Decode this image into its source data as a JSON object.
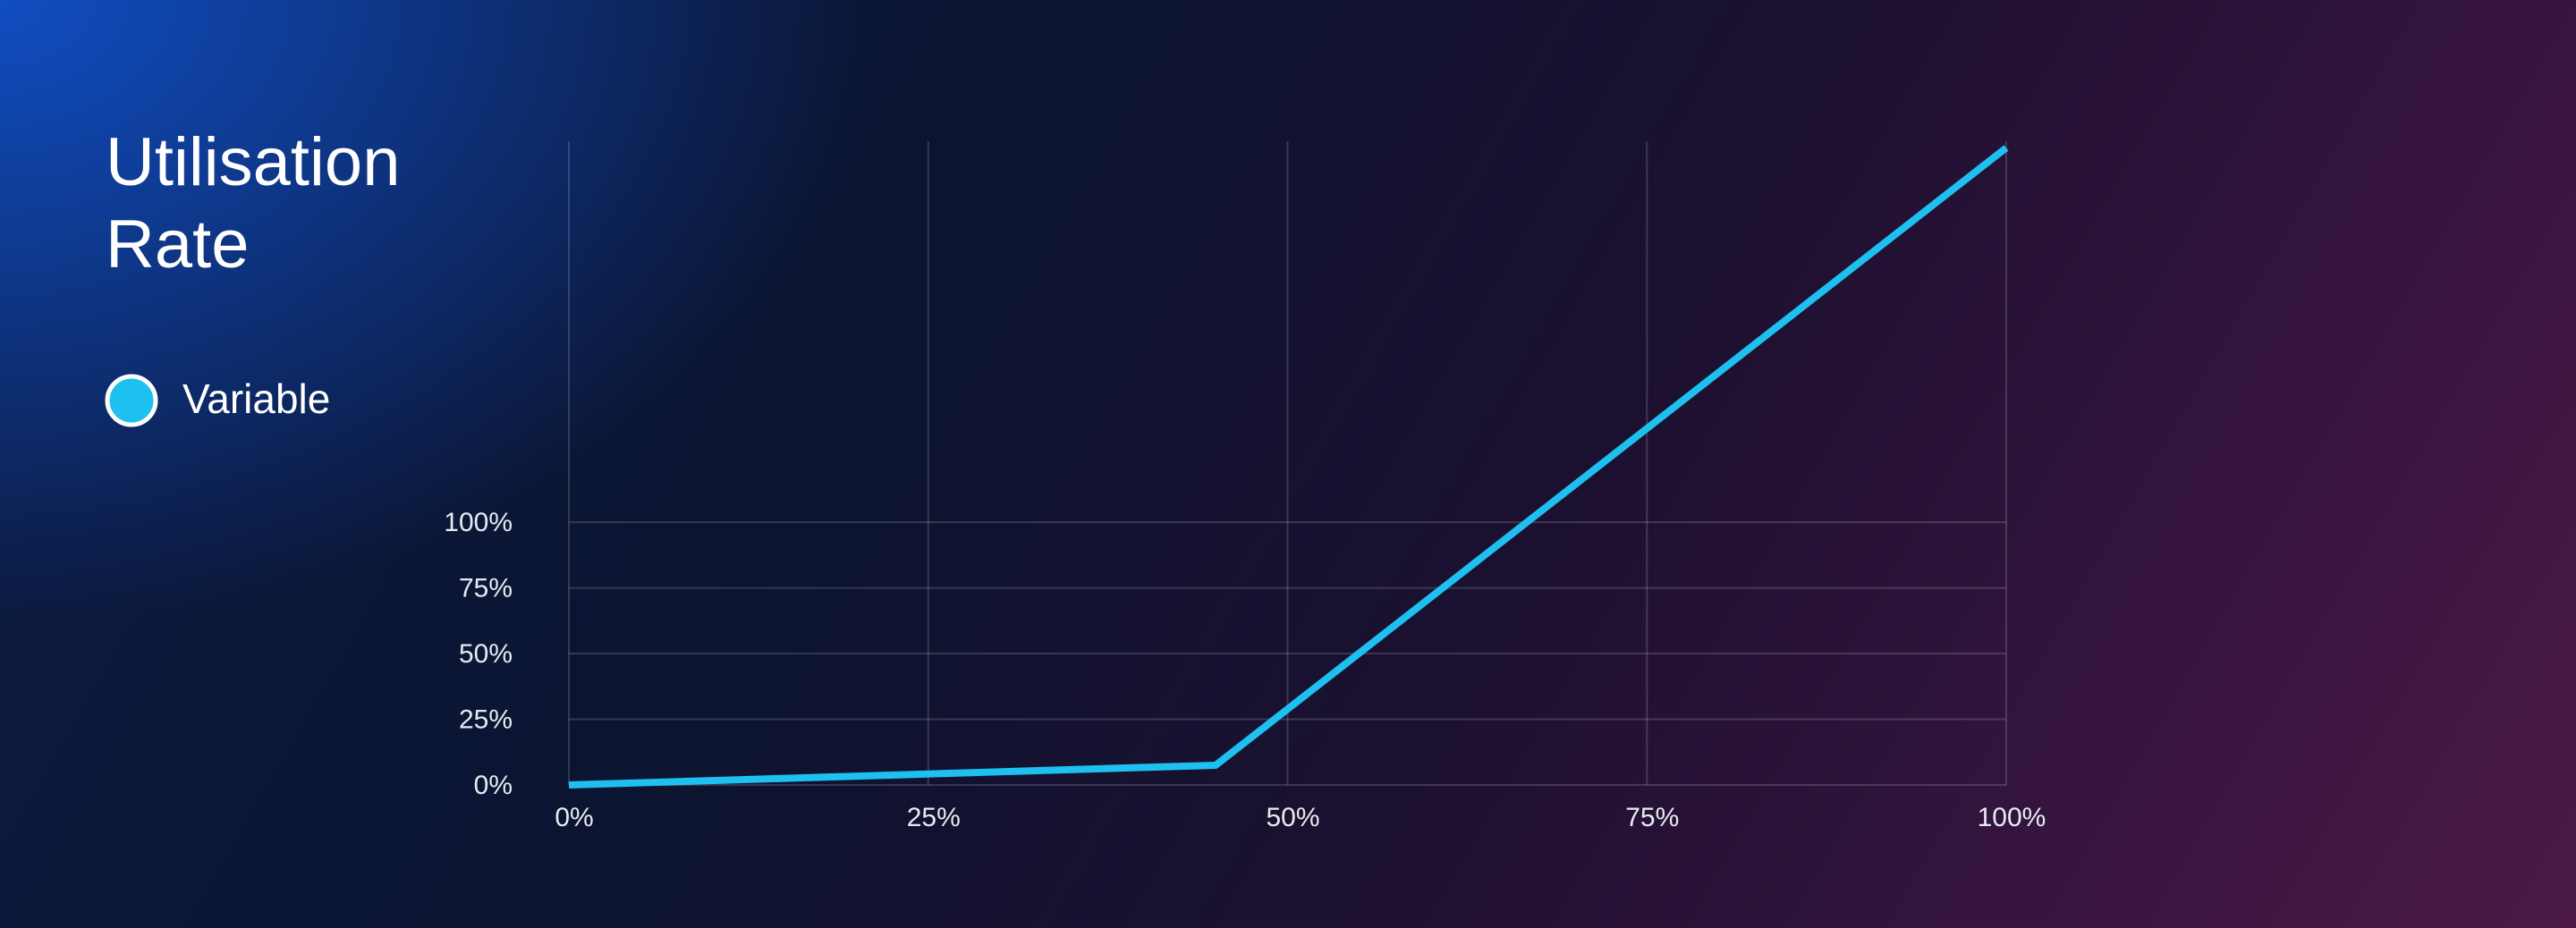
{
  "chart_data": {
    "type": "line",
    "title": "Utilisation Rate",
    "x": [
      0,
      45,
      100
    ],
    "series": [
      {
        "name": "Variable",
        "color": "#1ec0f0",
        "values": [
          0,
          7.5,
          242.5
        ]
      }
    ],
    "xlim": [
      0,
      100
    ],
    "xticks": [
      {
        "value": 0,
        "label": "0%"
      },
      {
        "value": 25,
        "label": "25%"
      },
      {
        "value": 50,
        "label": "50%"
      },
      {
        "value": 75,
        "label": "75%"
      },
      {
        "value": 100,
        "label": "100%"
      }
    ],
    "ylim": [
      0,
      245
    ],
    "yticks": [
      {
        "value": 0,
        "label": "0%"
      },
      {
        "value": 25,
        "label": "25%"
      },
      {
        "value": 50,
        "label": "50%"
      },
      {
        "value": 75,
        "label": "75%"
      },
      {
        "value": 100,
        "label": "100%"
      }
    ],
    "grid": true
  }
}
